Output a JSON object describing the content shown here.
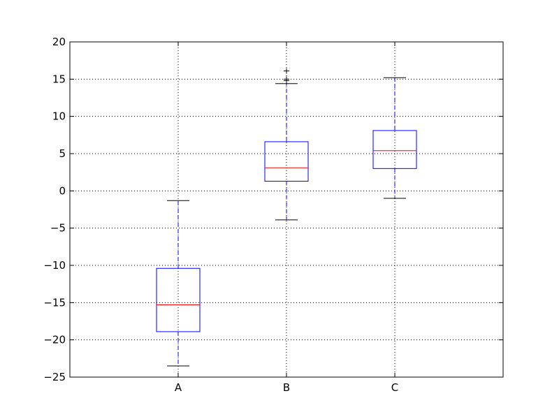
{
  "chart_data": {
    "type": "box",
    "categories": [
      "A",
      "B",
      "C"
    ],
    "ylim": [
      -25,
      20
    ],
    "y_ticks": [
      20,
      15,
      10,
      5,
      0,
      -5,
      -10,
      -15,
      -20,
      -25
    ],
    "y_tick_labels": [
      "20",
      "15",
      "10",
      "5",
      "0",
      "−5",
      "−10",
      "−15",
      "−20",
      "−25"
    ],
    "grid": true,
    "boxes": [
      {
        "name": "A",
        "whisker_low": -23.5,
        "q1": -18.9,
        "median": -15.3,
        "q3": -10.4,
        "whisker_high": -1.3,
        "outliers": []
      },
      {
        "name": "B",
        "whisker_low": -3.9,
        "q1": 1.3,
        "median": 3.1,
        "q3": 6.6,
        "whisker_high": 14.4,
        "outliers": [
          14.8,
          15.0,
          16.1
        ]
      },
      {
        "name": "C",
        "whisker_low": -1.0,
        "q1": 3.0,
        "median": 5.4,
        "q3": 8.1,
        "whisker_high": 15.2,
        "outliers": []
      }
    ],
    "colors": {
      "box": "#0000ff",
      "median": "#ff0000",
      "whisker": "#0000ff",
      "cap": "#000000",
      "flier": "#000000",
      "grid": "#000000",
      "axes": "#000000"
    }
  }
}
